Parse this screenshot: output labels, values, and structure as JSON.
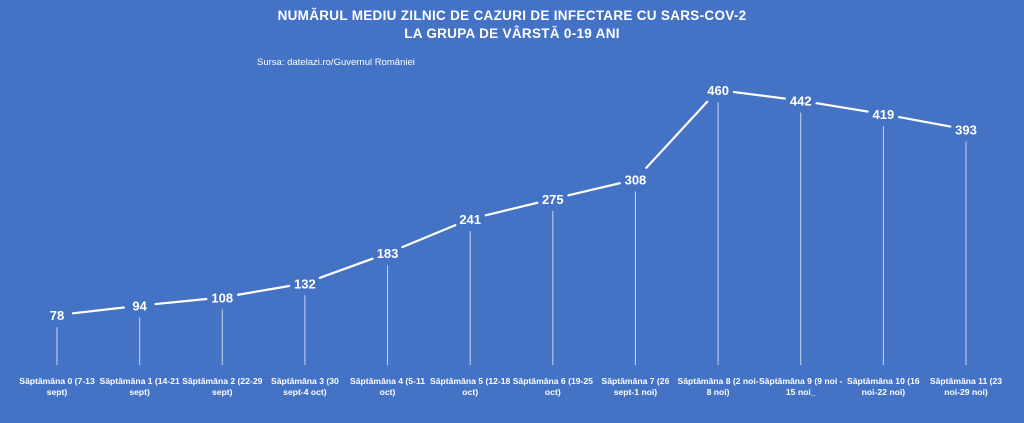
{
  "chart_data": {
    "type": "line",
    "title_lines": [
      "NUMĂRUL MEDIU ZILNIC DE CAZURI DE INFECTARE CU SARS-COV-2",
      "LA GRUPA DE VÂRSTĂ 0-19 ANI"
    ],
    "source": "Sursa: datelazi.ro/Guvernul României",
    "categories": [
      [
        "Săptămâna 0 (7-13",
        "sept)"
      ],
      [
        "Săptămâna 1 (14-21",
        "sept)"
      ],
      [
        "Săptămâna 2 (22-29",
        "sept)"
      ],
      [
        "Săptămâna 3 (30",
        "sept-4 oct)"
      ],
      [
        "Săptămâna 4 (5-11",
        "oct)"
      ],
      [
        "Săptămâna 5 (12-18",
        "oct)"
      ],
      [
        "Săptămâna 6 (19-25",
        "oct)"
      ],
      [
        "Săptămâna 7 (26",
        "sept-1 noi)"
      ],
      [
        "Săptămâna 8 (2 noi-",
        "8 noi)"
      ],
      [
        "Săptămâna 9 (9 noi -",
        "15 noi_"
      ],
      [
        "Săptămâna 10 (16",
        "noi-22 noi)"
      ],
      [
        "Săptămâna 11 (23",
        "noi-29 noi)"
      ]
    ],
    "values": [
      78,
      94,
      108,
      132,
      183,
      241,
      275,
      308,
      460,
      442,
      419,
      393
    ],
    "data_labels": [
      "78",
      "94",
      "108",
      "132",
      "183",
      "241",
      "275",
      "308",
      "460",
      "442",
      "419",
      "393"
    ],
    "ylim": [
      0,
      460
    ],
    "grid": false,
    "drop_lines": true,
    "colors": {
      "background": "#4472c4",
      "line": "#ffffff",
      "text": "#ffffff"
    }
  }
}
